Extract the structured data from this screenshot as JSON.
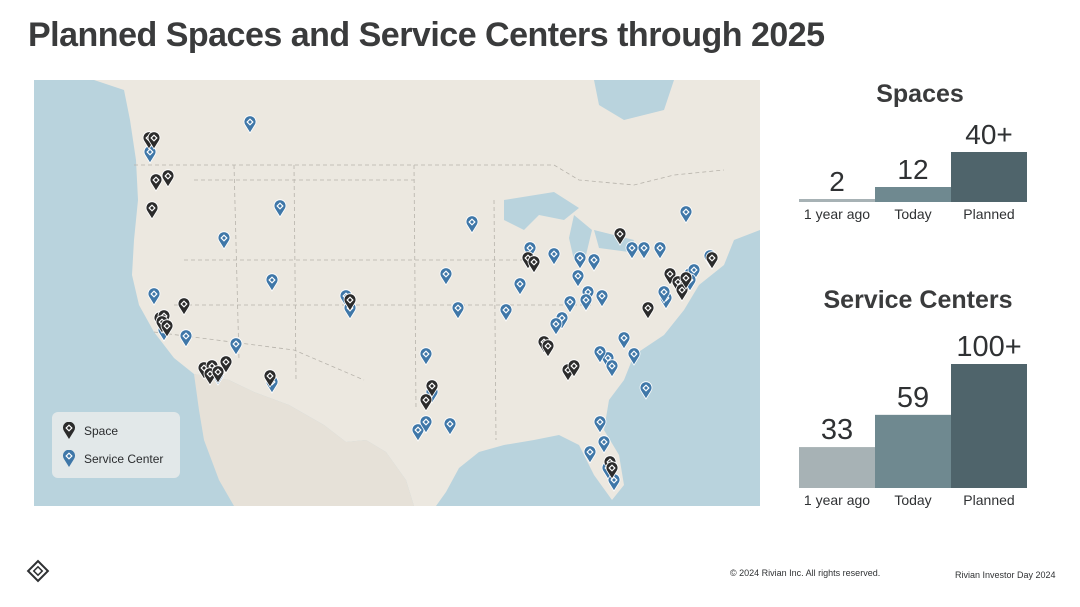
{
  "page": {
    "title": "Planned Spaces and Service Centers through 2025",
    "copyright": "© 2024 Rivian Inc. All rights reserved.",
    "event": "Rivian Investor Day 2024"
  },
  "legend": {
    "space_label": "Space",
    "service_label": "Service Center"
  },
  "colors": {
    "space_pin": "#2b2b2b",
    "service_pin": "#3f77a8",
    "bar_1_year_ago": "#a7b2b5",
    "bar_today": "#6f8990",
    "bar_planned": "#4f646b",
    "water": "#b9d3dd",
    "land": "#ede9e2"
  },
  "icons": {
    "space_pin": "space-pin-icon",
    "service_pin": "service-center-pin-icon",
    "logo": "rivian-compass-logo-icon"
  },
  "chart_data": [
    {
      "type": "bar",
      "title": "Spaces",
      "categories": [
        "1 year ago",
        "Today",
        "Planned"
      ],
      "values": [
        2,
        12,
        40
      ],
      "value_labels": [
        "2",
        "12",
        "40+"
      ],
      "ylim": [
        0,
        40
      ],
      "grid": false
    },
    {
      "type": "bar",
      "title": "Service Centers",
      "categories": [
        "1 year ago",
        "Today",
        "Planned"
      ],
      "values": [
        33,
        59,
        100
      ],
      "value_labels": [
        "33",
        "59",
        "100+"
      ],
      "ylim": [
        0,
        100
      ],
      "grid": false
    }
  ]
}
